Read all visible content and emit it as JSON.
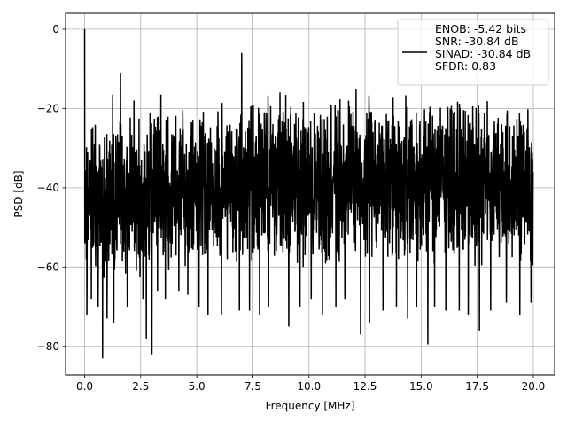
{
  "chart_data": {
    "type": "line",
    "title": "",
    "xlabel": "Frequency [MHz]",
    "ylabel": "PSD [dB]",
    "xlim": [
      -0.85,
      20.95
    ],
    "ylim": [
      -87.2,
      4.0
    ],
    "x_ticks": [
      0.0,
      2.5,
      5.0,
      7.5,
      10.0,
      12.5,
      15.0,
      17.5,
      20.0
    ],
    "x_tick_labels": [
      "0.0",
      "2.5",
      "5.0",
      "7.5",
      "10.0",
      "12.5",
      "15.0",
      "17.5",
      "20.0"
    ],
    "y_ticks": [
      0,
      -20,
      -40,
      -60,
      -80
    ],
    "y_tick_labels": [
      "0",
      "−20",
      "−40",
      "−60",
      "−80"
    ],
    "grid": true,
    "legend_position": "top-right",
    "series": [
      {
        "name": "ENOB: -5.42 bits\nSNR: -30.84 dB\nSINAD: -30.84 dB\nSFDR: 0.83",
        "color": "#000000",
        "x_range": [
          0.0,
          20.0
        ],
        "upper_envelope": [
          [
            0.0,
            0.0
          ],
          [
            0.05,
            -19.5
          ],
          [
            0.5,
            -22.0
          ],
          [
            1.0,
            -21.5
          ],
          [
            2.0,
            -20.5
          ],
          [
            3.0,
            -20.0
          ],
          [
            4.0,
            -19.5
          ],
          [
            5.0,
            -18.5
          ],
          [
            6.0,
            -17.5
          ],
          [
            7.0,
            -16.5
          ],
          [
            8.0,
            -16.0
          ],
          [
            9.0,
            -15.5
          ],
          [
            10.0,
            -15.5
          ],
          [
            11.0,
            -15.5
          ],
          [
            12.0,
            -15.5
          ],
          [
            13.0,
            -15.5
          ],
          [
            14.0,
            -15.5
          ],
          [
            15.0,
            -16.0
          ],
          [
            16.0,
            -16.5
          ],
          [
            17.0,
            -17.0
          ],
          [
            18.0,
            -17.5
          ],
          [
            19.0,
            -18.0
          ],
          [
            20.0,
            -18.5
          ]
        ],
        "lower_envelope": [
          [
            0.0,
            -64.0
          ],
          [
            1.0,
            -66.0
          ],
          [
            2.0,
            -64.0
          ],
          [
            3.0,
            -63.0
          ],
          [
            4.0,
            -62.0
          ],
          [
            5.0,
            -61.0
          ],
          [
            6.0,
            -61.0
          ],
          [
            7.0,
            -61.0
          ],
          [
            8.0,
            -61.0
          ],
          [
            9.0,
            -61.0
          ],
          [
            10.0,
            -61.0
          ],
          [
            11.0,
            -61.0
          ],
          [
            12.0,
            -61.0
          ],
          [
            13.0,
            -61.0
          ],
          [
            14.0,
            -61.0
          ],
          [
            15.0,
            -61.0
          ],
          [
            16.0,
            -61.0
          ],
          [
            17.0,
            -61.0
          ],
          [
            18.0,
            -61.0
          ],
          [
            19.0,
            -61.0
          ],
          [
            20.0,
            -61.0
          ]
        ],
        "spurs": [
          [
            0.0,
            0.0
          ],
          [
            1.6,
            -11.0
          ],
          [
            7.0,
            -6.0
          ],
          [
            1.25,
            -16.5
          ],
          [
            3.4,
            -16.5
          ],
          [
            9.1,
            -14.0
          ],
          [
            12.1,
            -15.0
          ],
          [
            2.2,
            -18.0
          ],
          [
            5.5,
            -17.0
          ]
        ],
        "dips": [
          [
            0.1,
            -72.0
          ],
          [
            0.3,
            -68.0
          ],
          [
            0.6,
            -70.0
          ],
          [
            0.8,
            -83.0
          ],
          [
            1.0,
            -73.0
          ],
          [
            1.3,
            -74.0
          ],
          [
            1.9,
            -70.0
          ],
          [
            2.6,
            -68.0
          ],
          [
            2.75,
            -78.0
          ],
          [
            3.0,
            -82.0
          ],
          [
            3.25,
            -66.0
          ],
          [
            3.6,
            -68.0
          ],
          [
            4.2,
            -66.0
          ],
          [
            4.6,
            -67.0
          ],
          [
            5.1,
            -70.0
          ],
          [
            5.5,
            -72.0
          ],
          [
            6.1,
            -72.0
          ],
          [
            6.9,
            -71.0
          ],
          [
            7.35,
            -71.0
          ],
          [
            7.8,
            -72.0
          ],
          [
            8.2,
            -70.0
          ],
          [
            9.1,
            -75.0
          ],
          [
            9.6,
            -70.0
          ],
          [
            10.1,
            -68.0
          ],
          [
            10.6,
            -72.0
          ],
          [
            11.2,
            -70.0
          ],
          [
            11.6,
            -68.0
          ],
          [
            12.3,
            -77.0
          ],
          [
            12.7,
            -74.0
          ],
          [
            13.3,
            -71.0
          ],
          [
            13.9,
            -70.0
          ],
          [
            14.4,
            -73.0
          ],
          [
            14.8,
            -70.0
          ],
          [
            15.3,
            -79.5
          ],
          [
            15.6,
            -70.0
          ],
          [
            16.1,
            -71.0
          ],
          [
            16.7,
            -71.0
          ],
          [
            17.1,
            -72.0
          ],
          [
            17.6,
            -76.0
          ],
          [
            18.1,
            -71.0
          ],
          [
            18.8,
            -69.0
          ],
          [
            19.4,
            -72.0
          ],
          [
            19.9,
            -69.0
          ]
        ]
      }
    ]
  }
}
